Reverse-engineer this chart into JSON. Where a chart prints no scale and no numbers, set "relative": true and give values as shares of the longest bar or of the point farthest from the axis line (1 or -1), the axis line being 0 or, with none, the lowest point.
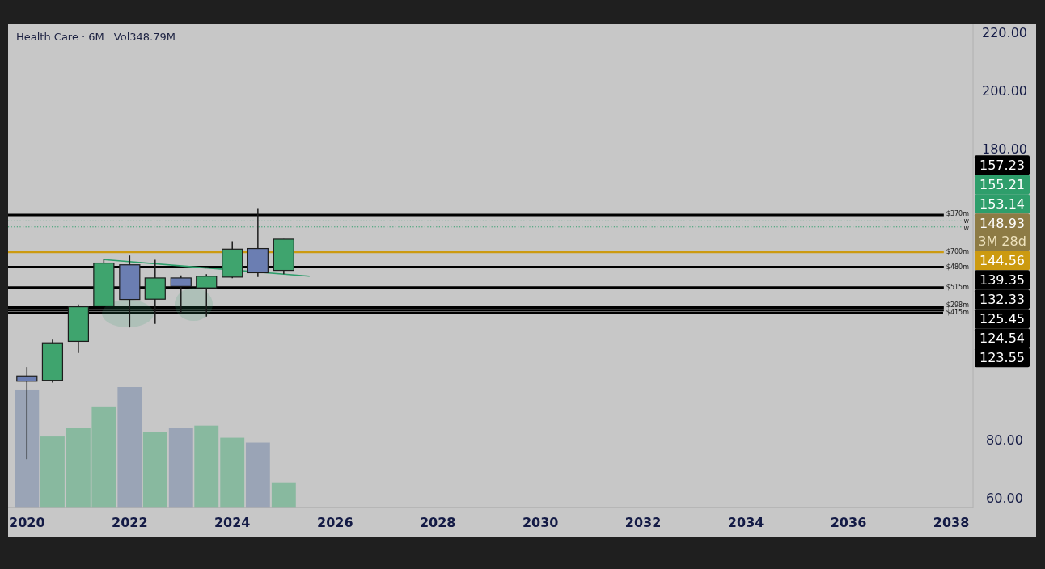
{
  "chart_data": [
    {
      "type": "candlestick",
      "title": "Health Care · 6M",
      "x": [
        "2020-01",
        "2020-07",
        "2021-01",
        "2021-07",
        "2022-01",
        "2022-07",
        "2023-01",
        "2023-07",
        "2024-01",
        "2024-07",
        "2025-01"
      ],
      "ohlc": [
        [
          101.9,
          105.0,
          73.3,
          100.1
        ],
        [
          100.4,
          114.4,
          99.6,
          113.3
        ],
        [
          113.8,
          126.5,
          109.8,
          125.7
        ],
        [
          126.0,
          141.9,
          125.8,
          140.7
        ],
        [
          140.1,
          143.3,
          118.6,
          128.2
        ],
        [
          128.3,
          141.8,
          119.8,
          135.6
        ],
        [
          135.6,
          136.5,
          123.5,
          132.7
        ],
        [
          132.2,
          136.9,
          122.3,
          136.2
        ],
        [
          135.9,
          148.2,
          135.5,
          145.5
        ],
        [
          145.7,
          159.6,
          135.9,
          137.4
        ],
        [
          138.2,
          149.0,
          136.9,
          148.93
        ]
      ],
      "colors": [
        "#6b7eb2",
        "#3fa46e",
        "#3fa46e",
        "#3fa46e",
        "#6b7eb2",
        "#3fa46e",
        "#6b7eb2",
        "#3fa46e",
        "#3fa46e",
        "#6b7eb2",
        "#3fa46e"
      ],
      "series": [
        {
          "type": "line",
          "x": [
            "2021-07",
            "2025-07"
          ],
          "values": [
            141.9,
            136.2
          ],
          "color": "#2e9e6b"
        }
      ],
      "xlim": [
        "2019-08-20",
        "2038-06-05"
      ],
      "xticks": [
        "2020",
        "2022",
        "2024",
        "2026",
        "2028",
        "2030",
        "2032",
        "2034",
        "2036",
        "2038"
      ],
      "ylim": [
        56.7,
        222.8
      ],
      "yticks": [
        {
          "value": 60,
          "label": "60.00"
        },
        {
          "value": 80,
          "label": "80.00"
        },
        {
          "value": 180,
          "label": "180.00"
        },
        {
          "value": 200,
          "label": "200.00"
        },
        {
          "value": 220,
          "label": "220.00"
        }
      ],
      "ref_lines": [
        {
          "axis": "y",
          "value": 157.23,
          "label": "$370m",
          "color": "#000000"
        },
        {
          "axis": "y",
          "value": 155.21,
          "label": "w",
          "color": "#2e9e6b",
          "line_style": "dotted"
        },
        {
          "axis": "y",
          "value": 153.14,
          "label": "w",
          "color": "#2e9e6b",
          "line_style": "dotted"
        },
        {
          "axis": "y",
          "value": 144.56,
          "label": "$700m",
          "color": "#cc9a10"
        },
        {
          "axis": "y",
          "value": 139.35,
          "label": "$480m",
          "color": "#000000"
        },
        {
          "axis": "y",
          "value": 132.33,
          "label": "$515m",
          "color": "#000000"
        },
        {
          "axis": "y",
          "value": 125.45,
          "label": "$298m",
          "color": "#000000"
        },
        {
          "axis": "y",
          "value": 124.54,
          "label": "$415m",
          "color": "#000000"
        },
        {
          "axis": "y",
          "value": 123.55,
          "color": "#000000"
        }
      ],
      "annotations": [
        "157.23",
        "155.21",
        "153.14",
        "148.93",
        "3M 28d",
        "144.56",
        "139.35",
        "132.33",
        "125.45",
        "124.54",
        "123.55"
      ]
    },
    {
      "type": "bar",
      "title": "Vol348.79M",
      "x": [
        "2020-01",
        "2020-07",
        "2021-01",
        "2021-07",
        "2022-01",
        "2022-07",
        "2023-01",
        "2023-07",
        "2024-01",
        "2024-07",
        "2025-01"
      ],
      "values": [
        0.98,
        0.59,
        0.66,
        0.84,
        1,
        0.63,
        0.66,
        0.68,
        0.58,
        0.54,
        0.21
      ],
      "colors": [
        "#9aa4b6",
        "#88b99f",
        "#88b99f",
        "#88b99f",
        "#9aa4b6",
        "#88b99f",
        "#9aa4b6",
        "#88b99f",
        "#88b99f",
        "#9aa4b6",
        "#88b99f"
      ],
      "relative": true,
      "xlim": [
        "2019-08-20",
        "2038-06-05"
      ]
    }
  ]
}
